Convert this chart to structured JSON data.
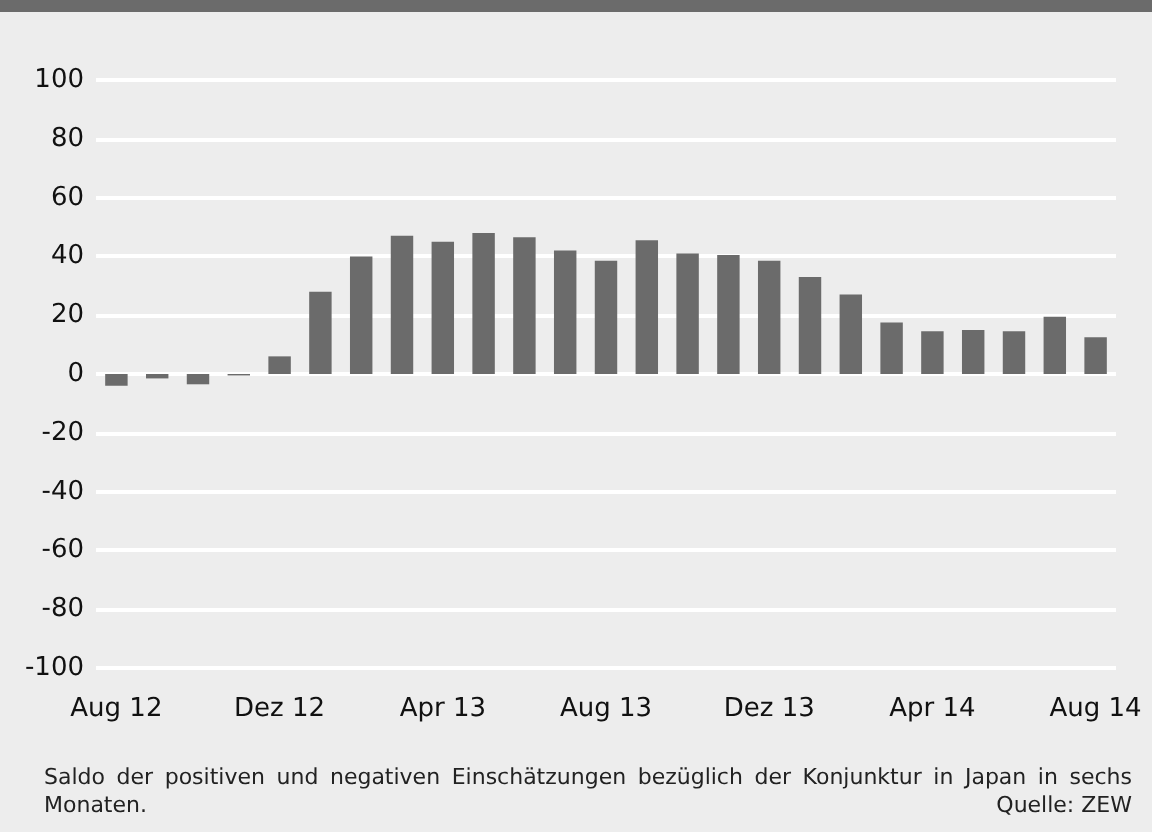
{
  "chart_data": {
    "type": "bar",
    "categories": [
      "Aug 12",
      null,
      null,
      null,
      "Dez 12",
      null,
      null,
      null,
      "Apr 13",
      null,
      null,
      null,
      "Aug 13",
      null,
      null,
      null,
      "Dez 13",
      null,
      null,
      null,
      "Apr 14",
      null,
      null,
      null,
      "Aug 14"
    ],
    "values": [
      -4,
      -1.5,
      -3.5,
      -0.5,
      6,
      28,
      40,
      47,
      45,
      48,
      46.5,
      42,
      38.5,
      45.5,
      41,
      40.5,
      38.5,
      33,
      27,
      17.5,
      14.5,
      15,
      14.5,
      19.5,
      12.5
    ],
    "color": "#6b6b6b",
    "ylim": [
      -100,
      100
    ],
    "yticks": [
      -100,
      -80,
      -60,
      -40,
      -20,
      0,
      20,
      40,
      60,
      80,
      100
    ],
    "grid": "y",
    "annotations": [
      "Saldo der positiven und negativen Einschätzungen bezüglich der Konjunktur in Japan in sechs Monaten.",
      "Quelle: ZEW"
    ]
  }
}
